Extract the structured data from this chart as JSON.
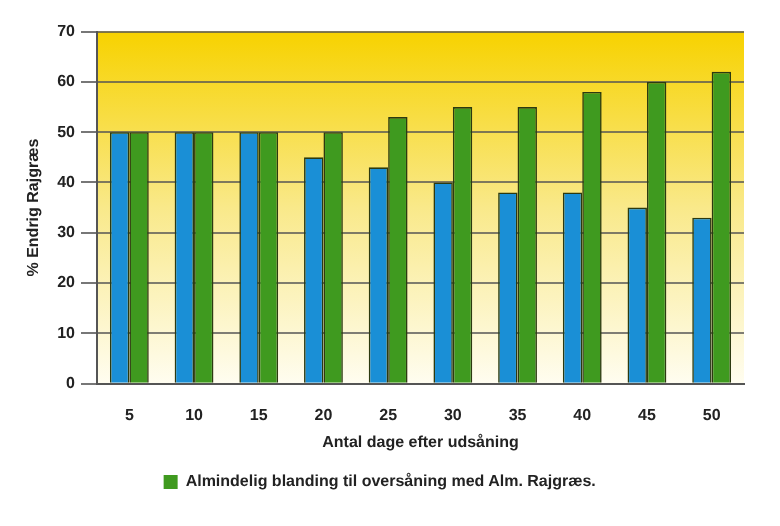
{
  "chart_data": {
    "type": "bar",
    "xlabel": "Antal dage efter udsåning",
    "ylabel": "% Endrig Rajgræs",
    "categories": [
      "5",
      "10",
      "15",
      "20",
      "25",
      "30",
      "35",
      "40",
      "45",
      "50"
    ],
    "series": [
      {
        "color": "#1a8fd6",
        "values": [
          50,
          50,
          50,
          45,
          43,
          40,
          38,
          38,
          35,
          33
        ]
      },
      {
        "name": "Almindelig blanding til oversåning med Alm. Rajgræs.",
        "color": "#3f9a1f",
        "values": [
          50,
          50,
          50,
          50,
          53,
          55,
          55,
          58,
          60,
          62
        ]
      }
    ],
    "ylim": [
      0,
      70
    ],
    "yticks": [
      0,
      10,
      20,
      30,
      40,
      50,
      60,
      70
    ],
    "grid": "y",
    "legend": "bottom"
  }
}
